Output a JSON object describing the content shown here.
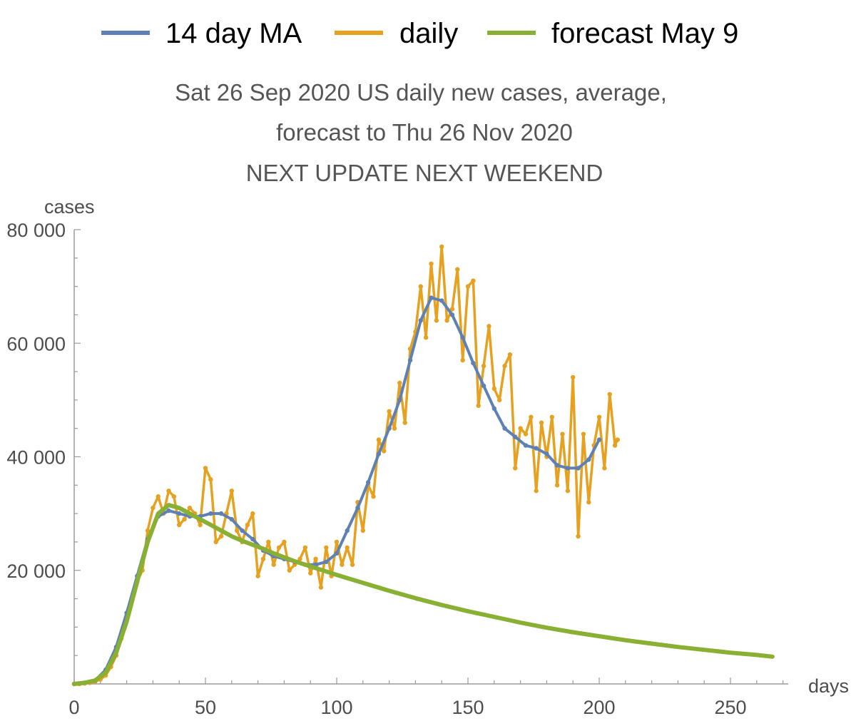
{
  "chart_data": {
    "type": "line",
    "title": [
      "Sat 26 Sep 2020 US daily new cases, average,",
      "forecast to Thu 26 Nov 2020",
      "NEXT UPDATE NEXT WEEKEND"
    ],
    "xlabel": "days",
    "ylabel": "cases",
    "xlim": [
      0,
      272
    ],
    "ylim": [
      0,
      80000
    ],
    "x_ticks": [
      0,
      50,
      100,
      150,
      200,
      250
    ],
    "y_ticks": [
      20000,
      40000,
      60000,
      80000
    ],
    "x_tick_labels": [
      "0",
      "50",
      "100",
      "150",
      "200",
      "250"
    ],
    "y_tick_labels": [
      "20 000",
      "40 000",
      "60 000",
      "80 000"
    ],
    "legend_position": "top",
    "grid": false,
    "series": [
      {
        "name": "daily",
        "color": "#E5A11F",
        "x": [
          0,
          2,
          4,
          6,
          8,
          10,
          12,
          14,
          16,
          18,
          20,
          22,
          24,
          26,
          28,
          30,
          32,
          34,
          36,
          38,
          40,
          42,
          44,
          46,
          48,
          50,
          52,
          54,
          56,
          58,
          60,
          62,
          64,
          66,
          68,
          70,
          72,
          74,
          76,
          78,
          80,
          82,
          84,
          86,
          88,
          90,
          92,
          94,
          96,
          98,
          100,
          102,
          104,
          106,
          108,
          110,
          112,
          114,
          116,
          118,
          120,
          122,
          124,
          126,
          128,
          130,
          132,
          134,
          136,
          138,
          140,
          142,
          144,
          146,
          148,
          150,
          152,
          154,
          156,
          158,
          160,
          162,
          164,
          166,
          168,
          170,
          172,
          174,
          176,
          178,
          180,
          182,
          184,
          186,
          188,
          190,
          192,
          194,
          196,
          198,
          200,
          202,
          204,
          206,
          207
        ],
        "values": [
          0,
          0,
          100,
          200,
          400,
          800,
          1500,
          3000,
          5000,
          8000,
          12000,
          15000,
          18000,
          20000,
          27000,
          31000,
          33000,
          30000,
          34000,
          33000,
          28000,
          29000,
          31000,
          30000,
          28000,
          38000,
          36000,
          25000,
          26000,
          30000,
          34000,
          27000,
          25000,
          28000,
          30000,
          19000,
          22000,
          25000,
          21000,
          24000,
          25000,
          20000,
          21000,
          22000,
          24000,
          19500,
          22000,
          17000,
          24000,
          19000,
          25000,
          21000,
          24000,
          21000,
          32000,
          27000,
          35000,
          33000,
          43000,
          41000,
          48000,
          45000,
          53000,
          46000,
          59000,
          62000,
          70000,
          61000,
          74000,
          64000,
          77000,
          64000,
          66000,
          73000,
          57000,
          70000,
          71000,
          49000,
          56000,
          63000,
          52000,
          50000,
          56000,
          58000,
          38000,
          45000,
          44000,
          47000,
          34000,
          46000,
          40000,
          47000,
          35000,
          44000,
          34000,
          54000,
          26000,
          44000,
          32000,
          42000,
          47000,
          38000,
          51000,
          42000,
          43000
        ]
      },
      {
        "name": "14 day MA",
        "color": "#5E81B5",
        "x": [
          0,
          4,
          8,
          12,
          16,
          20,
          24,
          28,
          32,
          36,
          40,
          44,
          48,
          52,
          56,
          60,
          64,
          68,
          72,
          76,
          80,
          84,
          88,
          92,
          96,
          100,
          104,
          108,
          112,
          116,
          120,
          124,
          128,
          132,
          136,
          140,
          144,
          148,
          152,
          156,
          160,
          164,
          168,
          172,
          176,
          180,
          184,
          188,
          192,
          196,
          200
        ],
        "values": [
          0,
          200,
          600,
          2500,
          6500,
          12500,
          19000,
          25500,
          29500,
          30500,
          30000,
          29500,
          29500,
          30000,
          30000,
          29000,
          27000,
          25500,
          23500,
          22500,
          22000,
          21500,
          21000,
          21000,
          21500,
          23000,
          27000,
          31000,
          35500,
          40500,
          45000,
          50000,
          57000,
          64000,
          68000,
          67500,
          65000,
          61000,
          56500,
          52500,
          48500,
          45000,
          43500,
          42000,
          41500,
          40500,
          38500,
          38000,
          38000,
          39500,
          43000
        ]
      },
      {
        "name": "forecast May 9",
        "color": "#8AB033",
        "x": [
          0,
          4,
          8,
          12,
          16,
          20,
          24,
          28,
          32,
          36,
          40,
          44,
          48,
          52,
          56,
          60,
          64,
          68,
          72,
          76,
          80,
          84,
          88,
          92,
          96,
          100,
          110,
          120,
          130,
          140,
          150,
          160,
          170,
          180,
          190,
          200,
          210,
          220,
          230,
          240,
          250,
          260,
          266
        ],
        "values": [
          0,
          200,
          600,
          2000,
          5500,
          11000,
          18000,
          25000,
          30000,
          31500,
          31000,
          30000,
          29000,
          28000,
          27000,
          26000,
          25200,
          24500,
          23800,
          23000,
          22300,
          21600,
          21000,
          20400,
          19800,
          19200,
          17800,
          16400,
          15100,
          13900,
          12800,
          11800,
          10800,
          9900,
          9100,
          8400,
          7700,
          7100,
          6500,
          6000,
          5500,
          5100,
          4800
        ]
      }
    ]
  }
}
